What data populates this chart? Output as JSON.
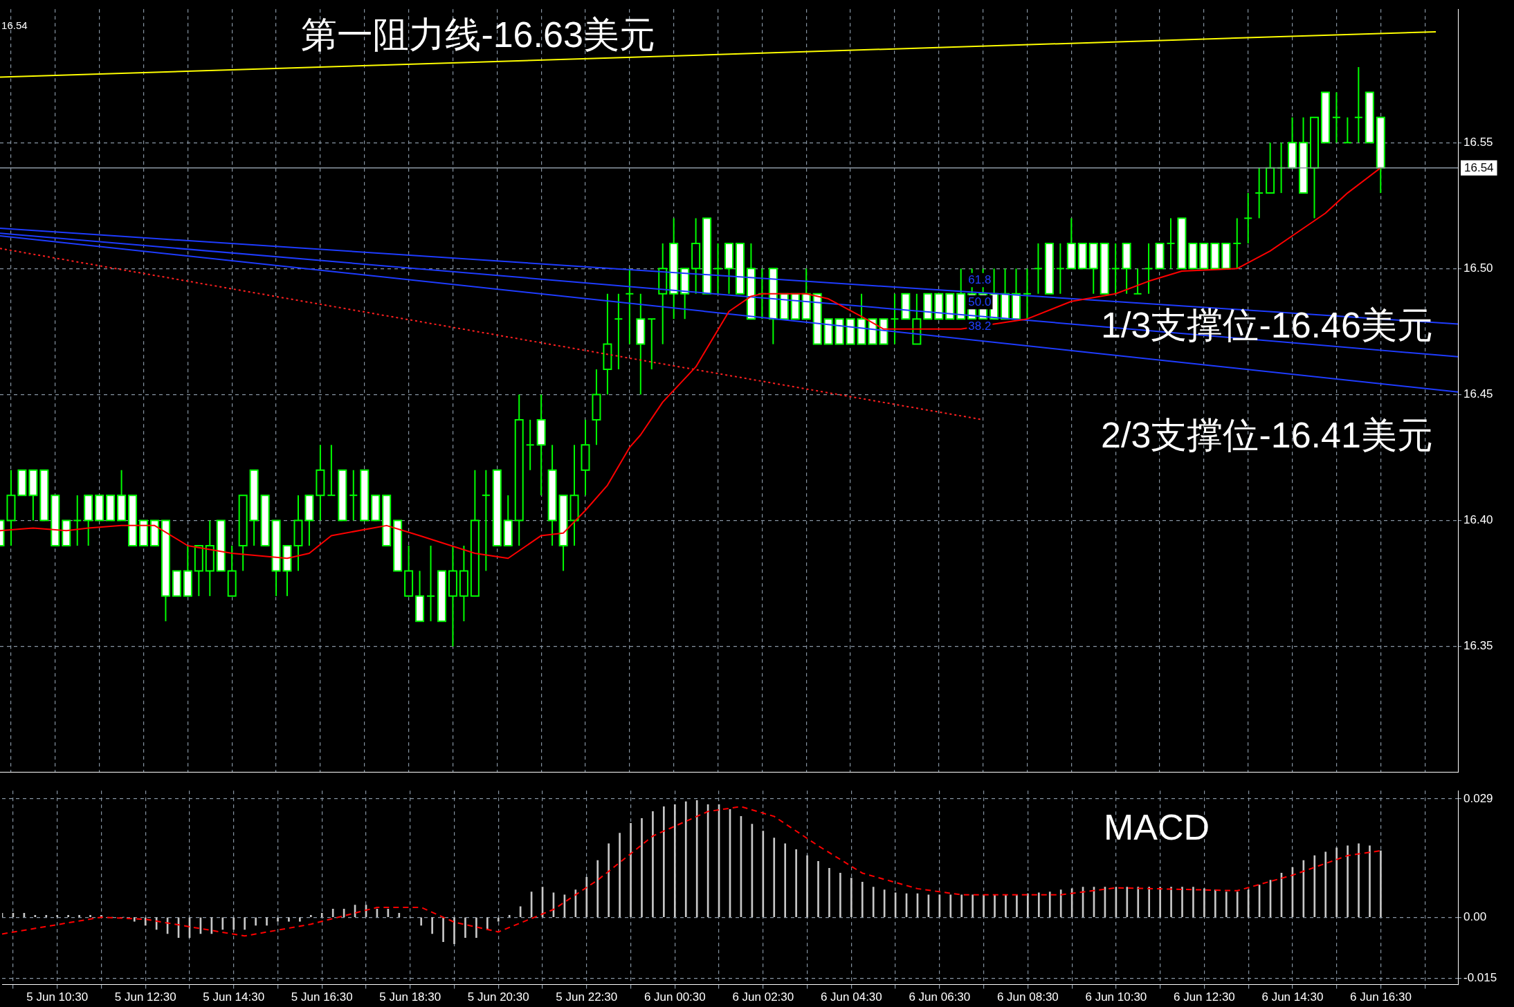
{
  "chart_data": [
    {
      "type": "candlestick",
      "color": "#00ff00",
      "colors": [
        "#ffffff",
        "#000000",
        "#ffffff",
        "#ffffff",
        "#ffffff",
        "#ffffff",
        "#ffffff",
        "#00ff00",
        "#ffffff",
        "#ffffff",
        "#ffffff",
        "#ffffff",
        "#ffffff",
        "#ffffff",
        "#ffffff",
        "#ffffff",
        "#ffffff",
        "#ffffff",
        "#000000",
        "#000000",
        "#ffffff",
        "#000000",
        "#000000",
        "#ffffff",
        "#ffffff",
        "#ffffff",
        "#ffffff",
        "#000000",
        "#ffffff",
        "#000000",
        "#00ff00",
        "#ffffff",
        "#00ff00",
        "#ffffff",
        "#ffffff",
        "#ffffff",
        "#ffffff",
        "#000000",
        "#ffffff",
        "#00ff00",
        "#ffffff",
        "#000000",
        "#000000",
        "#000000",
        "#00ff00",
        "#ffffff",
        "#ffffff",
        "#000000",
        "#00ff00",
        "#ffffff",
        "#ffffff",
        "#ffffff",
        "#000000",
        "#000000",
        "#000000",
        "#000000",
        "#00ff00",
        "#00ff00",
        "#ffffff",
        "#00ff00",
        "#000000",
        "#ffffff",
        "#ffffff",
        "#000000",
        "#ffffff",
        "#00ff00",
        "#ffffff",
        "#ffffff",
        "#ffffff",
        "#00ff00",
        "#ffffff",
        "#ffffff",
        "#ffffff",
        "#ffffff",
        "#ffffff",
        "#ffffff",
        "#ffffff",
        "#ffffff",
        "#ffffff",
        "#ffffff",
        "#ffffff",
        "#00ff00",
        "#ffffff",
        "#000000",
        "#ffffff",
        "#ffffff",
        "#ffffff",
        "#ffffff",
        "#ffffff",
        "#ffffff",
        "#ffffff",
        "#ffffff",
        "#ffffff",
        "#00ff00",
        "#00ff00",
        "#ffffff",
        "#00ff00",
        "#ffffff",
        "#ffffff",
        "#ffffff",
        "#ffffff",
        "#00ff00",
        "#ffffff",
        "#00ff00",
        "#00ff00",
        "#ffffff",
        "#00ff00",
        "#ffffff",
        "#ffffff",
        "#ffffff",
        "#ffffff",
        "#ffffff",
        "#00ff00",
        "#00ff00",
        "#00ff00",
        "#000000",
        "#00ff00",
        "#ffffff",
        "#ffffff",
        "#000000",
        "#ffffff",
        "#00ff00",
        "#00ff00",
        "#00ff00",
        "#ffffff",
        "#ffffff",
        null,
        null,
        null,
        null,
        null,
        null,
        null
      ],
      "ohlc": [
        [
          16.4,
          16.4,
          16.39,
          16.39
        ],
        [
          16.4,
          16.42,
          16.39,
          16.41
        ],
        [
          16.42,
          16.42,
          16.41,
          16.41
        ],
        [
          16.42,
          16.42,
          16.4,
          16.41
        ],
        [
          16.42,
          16.42,
          16.4,
          16.4
        ],
        [
          16.41,
          16.41,
          16.39,
          16.39
        ],
        [
          16.4,
          16.4,
          16.39,
          16.39
        ],
        [
          16.4,
          16.41,
          16.39,
          16.4
        ],
        [
          16.41,
          16.41,
          16.39,
          16.4
        ],
        [
          16.41,
          16.41,
          16.4,
          16.4
        ],
        [
          16.41,
          16.41,
          16.4,
          16.4
        ],
        [
          16.41,
          16.42,
          16.4,
          16.4
        ],
        [
          16.41,
          16.41,
          16.39,
          16.39
        ],
        [
          16.4,
          16.4,
          16.39,
          16.39
        ],
        [
          16.4,
          16.4,
          16.39,
          16.39
        ],
        [
          16.4,
          16.4,
          16.36,
          16.37
        ],
        [
          16.38,
          16.38,
          16.37,
          16.37
        ],
        [
          16.38,
          16.39,
          16.37,
          16.37
        ],
        [
          16.38,
          16.39,
          16.37,
          16.39
        ],
        [
          16.38,
          16.4,
          16.37,
          16.39
        ],
        [
          16.4,
          16.4,
          16.38,
          16.38
        ],
        [
          16.37,
          16.39,
          16.37,
          16.38
        ],
        [
          16.39,
          16.41,
          16.38,
          16.41
        ],
        [
          16.42,
          16.42,
          16.39,
          16.4
        ],
        [
          16.41,
          16.41,
          16.39,
          16.39
        ],
        [
          16.4,
          16.4,
          16.37,
          16.38
        ],
        [
          16.39,
          16.39,
          16.37,
          16.38
        ],
        [
          16.39,
          16.41,
          16.38,
          16.4
        ],
        [
          16.41,
          16.41,
          16.39,
          16.4
        ],
        [
          16.41,
          16.43,
          16.4,
          16.42
        ],
        [
          16.41,
          16.43,
          16.41,
          16.41
        ],
        [
          16.42,
          16.42,
          16.4,
          16.4
        ],
        [
          16.41,
          16.42,
          16.4,
          16.41
        ],
        [
          16.42,
          16.42,
          16.4,
          16.4
        ],
        [
          16.41,
          16.41,
          16.4,
          16.4
        ],
        [
          16.41,
          16.41,
          16.39,
          16.39
        ],
        [
          16.4,
          16.4,
          16.38,
          16.38
        ],
        [
          16.37,
          16.39,
          16.37,
          16.38
        ],
        [
          16.37,
          16.38,
          16.36,
          16.36
        ],
        [
          16.37,
          16.39,
          16.36,
          16.37
        ],
        [
          16.38,
          16.38,
          16.36,
          16.36
        ],
        [
          16.37,
          16.39,
          16.35,
          16.38
        ],
        [
          16.37,
          16.39,
          16.36,
          16.38
        ],
        [
          16.37,
          16.42,
          16.37,
          16.4
        ],
        [
          16.41,
          16.42,
          16.38,
          16.41
        ],
        [
          16.42,
          16.42,
          16.39,
          16.39
        ],
        [
          16.4,
          16.41,
          16.39,
          16.39
        ],
        [
          16.4,
          16.45,
          16.39,
          16.44
        ],
        [
          16.43,
          16.44,
          16.42,
          16.43
        ],
        [
          16.44,
          16.45,
          16.41,
          16.43
        ],
        [
          16.42,
          16.43,
          16.39,
          16.4
        ],
        [
          16.41,
          16.41,
          16.38,
          16.39
        ],
        [
          16.4,
          16.43,
          16.39,
          16.41
        ],
        [
          16.42,
          16.44,
          16.41,
          16.43
        ],
        [
          16.44,
          16.46,
          16.43,
          16.45
        ],
        [
          16.46,
          16.49,
          16.45,
          16.47
        ],
        [
          16.48,
          16.49,
          16.46,
          16.48
        ],
        [
          16.49,
          16.5,
          16.47,
          16.49
        ],
        [
          16.48,
          16.49,
          16.45,
          16.47
        ],
        [
          16.48,
          16.48,
          16.46,
          16.48
        ],
        [
          16.49,
          16.51,
          16.47,
          16.5
        ],
        [
          16.51,
          16.52,
          16.48,
          16.49
        ],
        [
          16.5,
          16.5,
          16.48,
          16.49
        ],
        [
          16.5,
          16.52,
          16.49,
          16.51
        ],
        [
          16.52,
          16.52,
          16.49,
          16.49
        ],
        [
          16.5,
          16.51,
          16.49,
          16.5
        ],
        [
          16.51,
          16.51,
          16.49,
          16.5
        ],
        [
          16.51,
          16.51,
          16.49,
          16.49
        ],
        [
          16.5,
          16.51,
          16.48,
          16.48
        ],
        [
          16.49,
          16.5,
          16.48,
          16.49
        ],
        [
          16.5,
          16.5,
          16.47,
          16.48
        ],
        [
          16.49,
          16.49,
          16.48,
          16.48
        ],
        [
          16.49,
          16.49,
          16.48,
          16.48
        ],
        [
          16.49,
          16.5,
          16.48,
          16.48
        ],
        [
          16.49,
          16.49,
          16.47,
          16.47
        ],
        [
          16.48,
          16.48,
          16.47,
          16.47
        ],
        [
          16.48,
          16.48,
          16.47,
          16.47
        ],
        [
          16.48,
          16.48,
          16.47,
          16.47
        ],
        [
          16.48,
          16.49,
          16.47,
          16.47
        ],
        [
          16.48,
          16.48,
          16.47,
          16.47
        ],
        [
          16.48,
          16.48,
          16.47,
          16.47
        ],
        [
          16.48,
          16.49,
          16.47,
          16.48
        ],
        [
          16.49,
          16.49,
          16.48,
          16.48
        ],
        [
          16.47,
          16.49,
          16.47,
          16.48
        ],
        [
          16.49,
          16.49,
          16.48,
          16.48
        ],
        [
          16.49,
          16.49,
          16.48,
          16.48
        ],
        [
          16.49,
          16.49,
          16.48,
          16.48
        ],
        [
          16.49,
          16.5,
          16.48,
          16.48
        ],
        [
          16.49,
          16.5,
          16.48,
          16.48
        ],
        [
          16.49,
          16.5,
          16.48,
          16.48
        ],
        [
          16.49,
          16.5,
          16.48,
          16.48
        ],
        [
          16.49,
          16.5,
          16.48,
          16.48
        ],
        [
          16.49,
          16.5,
          16.48,
          16.48
        ],
        [
          16.49,
          16.5,
          16.48,
          16.49
        ],
        [
          16.5,
          16.51,
          16.49,
          16.5
        ],
        [
          16.51,
          16.51,
          16.49,
          16.49
        ],
        [
          16.5,
          16.51,
          16.49,
          16.5
        ],
        [
          16.51,
          16.52,
          16.5,
          16.5
        ],
        [
          16.51,
          16.51,
          16.5,
          16.5
        ],
        [
          16.51,
          16.51,
          16.49,
          16.5
        ],
        [
          16.51,
          16.51,
          16.49,
          16.49
        ],
        [
          16.5,
          16.51,
          16.49,
          16.5
        ],
        [
          16.51,
          16.51,
          16.49,
          16.5
        ],
        [
          16.49,
          16.5,
          16.49,
          16.49
        ],
        [
          16.5,
          16.51,
          16.49,
          16.5
        ],
        [
          16.51,
          16.51,
          16.5,
          16.5
        ],
        [
          16.51,
          16.52,
          16.5,
          16.51
        ],
        [
          16.52,
          16.52,
          16.5,
          16.5
        ],
        [
          16.51,
          16.51,
          16.5,
          16.5
        ],
        [
          16.51,
          16.51,
          16.5,
          16.5
        ],
        [
          16.51,
          16.51,
          16.5,
          16.5
        ],
        [
          16.51,
          16.51,
          16.5,
          16.5
        ],
        [
          16.51,
          16.52,
          16.5,
          16.51
        ],
        [
          16.52,
          16.53,
          16.51,
          16.52
        ],
        [
          16.53,
          16.54,
          16.52,
          16.53
        ],
        [
          16.53,
          16.55,
          16.53,
          16.54
        ],
        [
          16.54,
          16.55,
          16.53,
          16.54
        ],
        [
          16.55,
          16.56,
          16.54,
          16.54
        ],
        [
          16.55,
          16.56,
          16.53,
          16.53
        ],
        [
          16.54,
          16.56,
          16.52,
          16.56
        ],
        [
          16.57,
          16.57,
          16.55,
          16.55
        ],
        [
          16.56,
          16.57,
          16.55,
          16.56
        ],
        [
          16.55,
          16.56,
          16.55,
          16.55
        ],
        [
          16.56,
          16.58,
          16.55,
          16.56
        ],
        [
          16.57,
          16.57,
          16.55,
          16.55
        ],
        [
          16.56,
          16.56,
          16.53,
          16.54
        ],
        null,
        null,
        null,
        null,
        null,
        null,
        null
      ],
      "series": [
        {
          "type": "line",
          "color": "#ff0000",
          "line_style": "solid",
          "values": [
            16.396,
            null,
            null,
            16.397,
            null,
            null,
            16.396,
            null,
            16.397,
            null,
            null,
            16.398,
            null,
            null,
            16.398,
            null,
            null,
            16.39,
            null,
            null,
            null,
            16.387,
            null,
            null,
            null,
            null,
            16.385,
            null,
            16.387,
            null,
            16.394,
            null,
            null,
            null,
            null,
            16.398,
            null,
            null,
            16.394,
            null,
            null,
            null,
            null,
            16.387,
            null,
            null,
            16.385,
            null,
            null,
            16.394,
            null,
            16.395,
            null,
            16.404,
            null,
            16.414,
            null,
            16.429,
            16.434,
            null,
            16.447,
            null,
            null,
            16.461,
            null,
            null,
            16.483,
            null,
            16.489,
            16.49,
            null,
            null,
            null,
            16.49,
            null,
            16.488,
            null,
            null,
            16.481,
            null,
            16.476,
            null,
            null,
            null,
            null,
            16.476,
            null,
            16.476,
            null,
            null,
            16.478,
            null,
            null,
            16.48,
            null,
            null,
            null,
            16.487,
            null,
            null,
            null,
            16.49,
            null,
            null,
            16.495,
            null,
            null,
            16.499,
            null,
            null,
            null,
            null,
            16.5,
            null,
            null,
            16.507,
            null,
            16.513,
            null,
            null,
            16.522,
            null,
            16.53,
            null,
            null,
            16.54,
            null,
            null,
            null,
            null,
            null,
            null,
            null
          ]
        },
        {
          "type": "line",
          "color": "#ffff00",
          "line_style": "solid",
          "values": [
            16.576,
            null,
            null,
            null,
            null,
            null,
            null,
            null,
            null,
            null,
            null,
            null,
            null,
            null,
            null,
            null,
            null,
            null,
            null,
            null,
            null,
            null,
            null,
            null,
            null,
            null,
            null,
            null,
            null,
            null,
            null,
            null,
            null,
            null,
            null,
            null,
            null,
            null,
            null,
            null,
            null,
            null,
            null,
            null,
            null,
            null,
            null,
            null,
            null,
            null,
            null,
            null,
            null,
            null,
            null,
            null,
            null,
            null,
            null,
            null,
            null,
            null,
            null,
            null,
            null,
            null,
            null,
            null,
            null,
            null,
            null,
            null,
            null,
            null,
            null,
            null,
            null,
            null,
            null,
            null,
            null,
            null,
            null,
            null,
            null,
            null,
            null,
            null,
            null,
            null,
            null,
            null,
            null,
            null,
            null,
            null,
            null,
            null,
            null,
            null,
            null,
            null,
            null,
            null,
            null,
            null,
            null,
            null,
            null,
            null,
            null,
            null,
            null,
            null,
            null,
            null,
            null,
            null,
            null,
            null,
            null,
            null,
            null,
            null,
            null,
            null,
            null,
            null,
            null,
            null,
            16.594,
            null,
            null
          ]
        },
        {
          "type": "line",
          "color": "#1e3cff",
          "line_style": "solid",
          "values": [
            16.516,
            null,
            null,
            null,
            null,
            null,
            null,
            null,
            null,
            null,
            null,
            null,
            null,
            null,
            null,
            null,
            null,
            null,
            null,
            null,
            null,
            null,
            null,
            null,
            null,
            null,
            null,
            null,
            null,
            null,
            null,
            null,
            null,
            null,
            null,
            null,
            null,
            null,
            null,
            null,
            null,
            null,
            null,
            null,
            null,
            null,
            null,
            null,
            null,
            null,
            null,
            null,
            null,
            null,
            null,
            null,
            null,
            null,
            null,
            null,
            null,
            null,
            null,
            null,
            null,
            null,
            null,
            null,
            null,
            null,
            null,
            null,
            null,
            null,
            null,
            null,
            null,
            null,
            null,
            null,
            null,
            null,
            null,
            null,
            null,
            null,
            null,
            null,
            null,
            null,
            null,
            null,
            null,
            null,
            null,
            null,
            null,
            null,
            null,
            null,
            null,
            null,
            null,
            null,
            null,
            null,
            null,
            null,
            null,
            null,
            null,
            null,
            null,
            null,
            null,
            null,
            null,
            null,
            null,
            null,
            null,
            null,
            null,
            null,
            null,
            null,
            null,
            null,
            null,
            null,
            null,
            null,
            16.478
          ]
        },
        {
          "type": "line",
          "color": "#1e3cff",
          "line_style": "solid",
          "values": [
            16.514,
            null,
            null,
            null,
            null,
            null,
            null,
            null,
            null,
            null,
            null,
            null,
            null,
            null,
            null,
            null,
            null,
            null,
            null,
            null,
            null,
            null,
            null,
            null,
            null,
            null,
            null,
            null,
            null,
            null,
            null,
            null,
            null,
            null,
            null,
            null,
            null,
            null,
            null,
            null,
            null,
            null,
            null,
            null,
            null,
            null,
            null,
            null,
            null,
            null,
            null,
            null,
            null,
            null,
            null,
            null,
            null,
            null,
            null,
            null,
            null,
            null,
            null,
            null,
            null,
            null,
            null,
            null,
            null,
            null,
            null,
            null,
            null,
            null,
            null,
            null,
            null,
            null,
            null,
            null,
            null,
            null,
            null,
            null,
            null,
            null,
            null,
            null,
            null,
            null,
            null,
            null,
            null,
            null,
            null,
            null,
            null,
            null,
            null,
            null,
            null,
            null,
            null,
            null,
            null,
            null,
            null,
            null,
            null,
            null,
            null,
            null,
            null,
            null,
            null,
            null,
            null,
            null,
            null,
            null,
            null,
            null,
            null,
            null,
            null,
            null,
            null,
            null,
            null,
            null,
            null,
            null,
            16.465
          ]
        },
        {
          "type": "line",
          "color": "#1e3cff",
          "line_style": "solid",
          "values": [
            16.513,
            null,
            null,
            null,
            null,
            null,
            null,
            null,
            null,
            null,
            null,
            null,
            null,
            null,
            null,
            null,
            null,
            null,
            null,
            null,
            null,
            null,
            null,
            null,
            null,
            null,
            null,
            null,
            null,
            null,
            null,
            null,
            null,
            null,
            null,
            null,
            null,
            null,
            null,
            null,
            null,
            null,
            null,
            null,
            null,
            null,
            null,
            null,
            null,
            null,
            null,
            null,
            null,
            null,
            null,
            null,
            null,
            null,
            null,
            null,
            null,
            null,
            null,
            null,
            null,
            null,
            null,
            null,
            null,
            null,
            null,
            null,
            null,
            null,
            null,
            null,
            null,
            null,
            null,
            null,
            null,
            null,
            null,
            null,
            null,
            null,
            null,
            null,
            null,
            null,
            null,
            null,
            null,
            null,
            null,
            null,
            null,
            null,
            null,
            null,
            null,
            null,
            null,
            null,
            null,
            null,
            null,
            null,
            null,
            null,
            null,
            null,
            null,
            null,
            null,
            null,
            null,
            null,
            null,
            null,
            null,
            null,
            null,
            null,
            null,
            null,
            null,
            null,
            null,
            null,
            null,
            null,
            16.451
          ]
        },
        {
          "type": "line",
          "color": "#ff2020",
          "line_style": "dotted",
          "values": [
            16.508,
            null,
            null,
            null,
            null,
            null,
            null,
            null,
            null,
            null,
            null,
            null,
            null,
            null,
            null,
            null,
            null,
            null,
            null,
            null,
            null,
            null,
            null,
            null,
            null,
            null,
            null,
            null,
            null,
            null,
            null,
            null,
            null,
            null,
            null,
            null,
            null,
            null,
            null,
            null,
            null,
            null,
            null,
            null,
            null,
            null,
            null,
            null,
            null,
            null,
            null,
            null,
            null,
            null,
            null,
            null,
            null,
            null,
            null,
            null,
            null,
            null,
            null,
            null,
            null,
            null,
            null,
            null,
            null,
            null,
            null,
            null,
            null,
            null,
            null,
            null,
            null,
            null,
            null,
            null,
            null,
            null,
            null,
            null,
            null,
            null,
            null,
            null,
            null,
            16.44,
            null,
            null,
            null,
            null,
            null,
            null,
            null,
            null,
            null,
            null,
            null,
            null,
            null,
            null,
            null,
            null,
            null,
            null,
            null,
            null,
            null,
            null,
            null,
            null,
            null,
            null,
            null,
            null,
            null,
            null,
            null,
            null,
            null,
            null,
            null,
            null,
            null,
            null,
            null,
            null,
            null,
            null,
            null
          ]
        }
      ],
      "ylim": [
        16.3,
        16.603
      ],
      "yticks": [
        16.35,
        {
          "value": 16.4,
          "label": "16.40"
        },
        16.45,
        {
          "value": 16.5,
          "label": "16.50"
        },
        16.55
      ],
      "tick_labels": "y",
      "grid": true,
      "marker": "none",
      "ref_lines": [
        {
          "axis": "y",
          "value": 16.54,
          "label": "16.54",
          "color": "#8e99a5"
        }
      ],
      "annotations": [
        "16.54",
        "第一阻力线-16.63美元",
        "1/3支撑位-16.46美元",
        "2/3支撑位-16.41美元",
        "61.8",
        "50.0",
        "38.2"
      ]
    },
    {
      "type": "bar",
      "marker": "none",
      "grid": true,
      "categories": [
        null,
        null,
        null,
        null,
        null,
        "5 Jun 10:30",
        null,
        null,
        null,
        null,
        null,
        null,
        null,
        "5 Jun 12:30",
        null,
        null,
        null,
        null,
        null,
        null,
        null,
        "5 Jun 14:30",
        null,
        null,
        null,
        null,
        null,
        null,
        null,
        "5 Jun 16:30",
        null,
        null,
        null,
        null,
        null,
        null,
        null,
        "5 Jun 18:30",
        null,
        null,
        null,
        null,
        null,
        null,
        null,
        "5 Jun 20:30",
        null,
        null,
        null,
        null,
        null,
        null,
        null,
        "5 Jun 22:30",
        null,
        null,
        null,
        null,
        null,
        null,
        null,
        "6 Jun 00:30",
        null,
        null,
        null,
        null,
        null,
        null,
        null,
        "6 Jun 02:30",
        null,
        null,
        null,
        null,
        null,
        null,
        null,
        "6 Jun 04:30",
        null,
        null,
        null,
        null,
        null,
        null,
        null,
        "6 Jun 06:30",
        null,
        null,
        null,
        null,
        null,
        null,
        null,
        "6 Jun 08:30",
        null,
        null,
        null,
        null,
        null,
        null,
        null,
        "6 Jun 10:30",
        null,
        null,
        null,
        null,
        null,
        null,
        null,
        "6 Jun 12:30",
        null,
        null,
        null,
        null,
        null,
        null,
        null,
        "6 Jun 14:30",
        null,
        null,
        null,
        null,
        null,
        null,
        null,
        "6 Jun 16:30",
        null,
        null,
        null,
        null,
        null,
        null,
        null
      ],
      "series": [
        {
          "type": "bar",
          "color": "#c8c8c8",
          "values": [
            0.001,
            0.001,
            0.001,
            0.0005,
            0.0005,
            0.0005,
            0.0005,
            0.0005,
            0.0005,
            0.0005,
            0,
            0,
            -0.001,
            -0.002,
            -0.003,
            -0.004,
            -0.005,
            -0.005,
            -0.004,
            -0.004,
            -0.003,
            -0.003,
            -0.003,
            -0.002,
            -0.002,
            -0.001,
            -0.001,
            -0.001,
            0.0005,
            0.001,
            0.002,
            0.002,
            0.003,
            0.003,
            0.002,
            0.002,
            0.001,
            0,
            -0.002,
            -0.004,
            -0.006,
            -0.0065,
            -0.005,
            -0.005,
            -0.003,
            -0.001,
            0.0005,
            0.0026,
            0.0062,
            0.0074,
            0.006,
            0.0055,
            0.0067,
            0.0098,
            0.0139,
            0.018,
            0.0206,
            0.023,
            0.0242,
            0.0259,
            0.0271,
            0.0276,
            0.0283,
            0.0286,
            0.0276,
            0.0276,
            0.0264,
            0.0247,
            0.0228,
            0.0211,
            0.0194,
            0.018,
            0.0166,
            0.0151,
            0.0137,
            0.012,
            0.0108,
            0.0096,
            0.0086,
            0.0074,
            0.0067,
            0.006,
            0.0058,
            0.0058,
            0.0055,
            0.0055,
            0.0055,
            0.0055,
            0.0055,
            0.0055,
            0.0055,
            0.0055,
            0.0055,
            0.0058,
            0.006,
            0.0062,
            0.0067,
            0.007,
            0.0074,
            0.0074,
            0.0074,
            0.0074,
            0.0074,
            0.0074,
            0.0074,
            0.0074,
            0.0074,
            0.0074,
            0.0074,
            0.007,
            0.0067,
            0.0062,
            0.0062,
            0.0067,
            0.0079,
            0.0091,
            0.0108,
            0.0122,
            0.0139,
            0.0151,
            0.016,
            0.017,
            0.0175,
            0.018,
            0.0175,
            0.0163,
            null,
            null,
            null,
            null,
            null,
            null,
            null
          ]
        },
        {
          "type": "line",
          "color": "#ff0000",
          "line_style": "dashed",
          "values": [
            -0.0041,
            null,
            null,
            null,
            null,
            null,
            null,
            null,
            null,
            0,
            null,
            null,
            null,
            -0.0005,
            null,
            null,
            null,
            null,
            null,
            null,
            null,
            null,
            -0.0046,
            null,
            null,
            null,
            null,
            null,
            -0.0017,
            null,
            null,
            null,
            null,
            null,
            0.0024,
            null,
            null,
            null,
            0.0024,
            null,
            null,
            -0.0012,
            null,
            null,
            null,
            -0.0036,
            null,
            null,
            null,
            null,
            0.0019,
            null,
            null,
            null,
            0.0091,
            null,
            null,
            null,
            null,
            0.0199,
            null,
            null,
            null,
            null,
            0.0259,
            null,
            null,
            0.0271,
            null,
            null,
            0.0247,
            null,
            null,
            null,
            0.0175,
            null,
            null,
            null,
            0.0108,
            null,
            null,
            null,
            null,
            0.007,
            null,
            null,
            null,
            0.0055,
            null,
            null,
            null,
            null,
            null,
            null,
            null,
            null,
            0.0055,
            null,
            null,
            null,
            null,
            0.0072,
            null,
            null,
            null,
            null,
            null,
            null,
            null,
            null,
            null,
            null,
            0.0065,
            null,
            null,
            null,
            null,
            0.0103,
            null,
            null,
            null,
            null,
            0.0151,
            null,
            null,
            0.0163,
            null,
            null,
            null,
            null,
            null,
            null,
            null
          ]
        }
      ],
      "ylim": [
        -0.0165,
        0.031
      ],
      "yticks": [
        0.029,
        {
          "value": 0,
          "label": "0.00"
        },
        -0.015
      ],
      "annotations": [
        "MACD"
      ]
    }
  ]
}
